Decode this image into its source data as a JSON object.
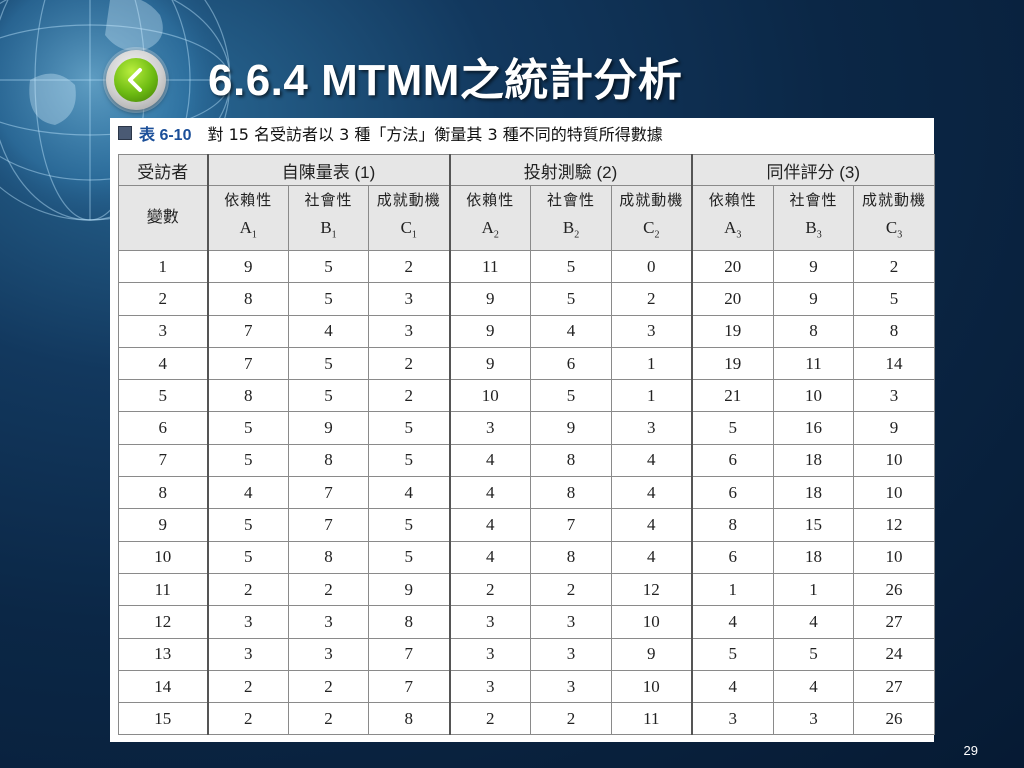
{
  "slide": {
    "title": "6.6.4 MTMM之統計分析",
    "page_number": "29"
  },
  "caption": {
    "table_label": "表 6-10",
    "text": "對 15 名受訪者以 3 種「方法」衡量其 3 種不同的特質所得數據"
  },
  "table": {
    "id_header": "受訪者",
    "var_header": "變數",
    "groups": [
      "自陳量表 (1)",
      "投射測驗 (2)",
      "同伴評分 (3)"
    ],
    "variables": [
      {
        "name": "依賴性",
        "code": "A",
        "sub": "1"
      },
      {
        "name": "社會性",
        "code": "B",
        "sub": "1"
      },
      {
        "name": "成就動機",
        "code": "C",
        "sub": "1"
      },
      {
        "name": "依賴性",
        "code": "A",
        "sub": "2"
      },
      {
        "name": "社會性",
        "code": "B",
        "sub": "2"
      },
      {
        "name": "成就動機",
        "code": "C",
        "sub": "2"
      },
      {
        "name": "依賴性",
        "code": "A",
        "sub": "3"
      },
      {
        "name": "社會性",
        "code": "B",
        "sub": "3"
      },
      {
        "name": "成就動機",
        "code": "C",
        "sub": "3"
      }
    ],
    "rows": [
      [
        "1",
        "9",
        "5",
        "2",
        "11",
        "5",
        "0",
        "20",
        "9",
        "2"
      ],
      [
        "2",
        "8",
        "5",
        "3",
        "9",
        "5",
        "2",
        "20",
        "9",
        "5"
      ],
      [
        "3",
        "7",
        "4",
        "3",
        "9",
        "4",
        "3",
        "19",
        "8",
        "8"
      ],
      [
        "4",
        "7",
        "5",
        "2",
        "9",
        "6",
        "1",
        "19",
        "11",
        "14"
      ],
      [
        "5",
        "8",
        "5",
        "2",
        "10",
        "5",
        "1",
        "21",
        "10",
        "3"
      ],
      [
        "6",
        "5",
        "9",
        "5",
        "3",
        "9",
        "3",
        "5",
        "16",
        "9"
      ],
      [
        "7",
        "5",
        "8",
        "5",
        "4",
        "8",
        "4",
        "6",
        "18",
        "10"
      ],
      [
        "8",
        "4",
        "7",
        "4",
        "4",
        "8",
        "4",
        "6",
        "18",
        "10"
      ],
      [
        "9",
        "5",
        "7",
        "5",
        "4",
        "7",
        "4",
        "8",
        "15",
        "12"
      ],
      [
        "10",
        "5",
        "8",
        "5",
        "4",
        "8",
        "4",
        "6",
        "18",
        "10"
      ],
      [
        "11",
        "2",
        "2",
        "9",
        "2",
        "2",
        "12",
        "1",
        "1",
        "26"
      ],
      [
        "12",
        "3",
        "3",
        "8",
        "3",
        "3",
        "10",
        "4",
        "4",
        "27"
      ],
      [
        "13",
        "3",
        "3",
        "7",
        "3",
        "3",
        "9",
        "5",
        "5",
        "24"
      ],
      [
        "14",
        "2",
        "2",
        "7",
        "3",
        "3",
        "10",
        "4",
        "4",
        "27"
      ],
      [
        "15",
        "2",
        "2",
        "8",
        "2",
        "2",
        "11",
        "3",
        "3",
        "26"
      ]
    ]
  },
  "icons": {
    "back": "chevron-left-icon",
    "globe": "globe-icon"
  },
  "colors": {
    "background": "#0b2746",
    "button_green": "#6dbb12",
    "table_header_bg": "#e6e6e6",
    "table_label": "#1b4f99"
  }
}
